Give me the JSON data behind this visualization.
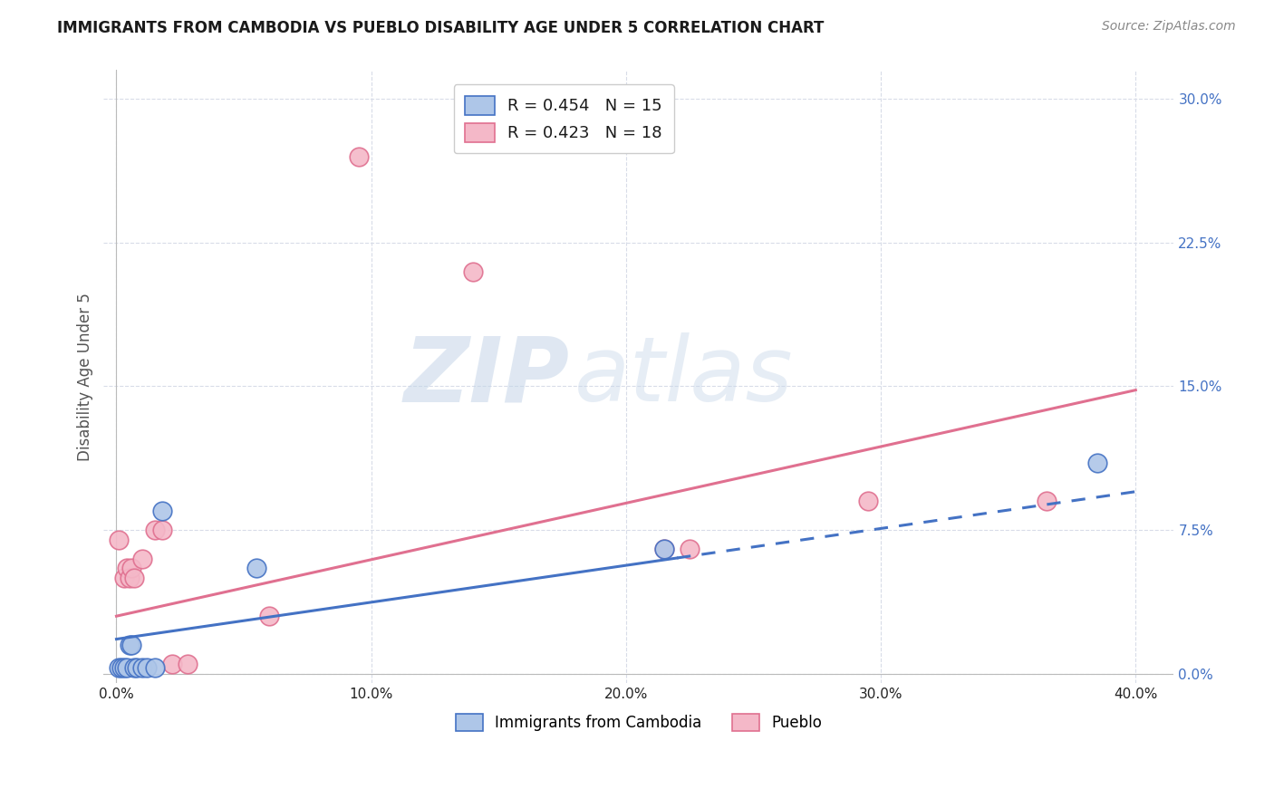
{
  "title": "IMMIGRANTS FROM CAMBODIA VS PUEBLO DISABILITY AGE UNDER 5 CORRELATION CHART",
  "source": "Source: ZipAtlas.com",
  "ylabel": "Disability Age Under 5",
  "xlabel_ticks": [
    "0.0%",
    "10.0%",
    "20.0%",
    "30.0%",
    "40.0%"
  ],
  "ylabel_ticks": [
    "0.0%",
    "7.5%",
    "15.0%",
    "22.5%",
    "30.0%"
  ],
  "xlim": [
    -0.005,
    0.415
  ],
  "ylim": [
    -0.005,
    0.315
  ],
  "watermark_zip": "ZIP",
  "watermark_atlas": "atlas",
  "legend_entries": [
    {
      "label": "R = 0.454   N = 15",
      "color": "#aec6e8",
      "edge": "#4472c4"
    },
    {
      "label": "R = 0.423   N = 18",
      "color": "#f4b8c8",
      "edge": "#e07090"
    }
  ],
  "legend_bottom": [
    "Immigrants from Cambodia",
    "Pueblo"
  ],
  "cambodia_points": [
    [
      0.001,
      0.003
    ],
    [
      0.002,
      0.003
    ],
    [
      0.003,
      0.003
    ],
    [
      0.004,
      0.003
    ],
    [
      0.005,
      0.015
    ],
    [
      0.006,
      0.015
    ],
    [
      0.007,
      0.003
    ],
    [
      0.008,
      0.003
    ],
    [
      0.01,
      0.003
    ],
    [
      0.012,
      0.003
    ],
    [
      0.015,
      0.003
    ],
    [
      0.018,
      0.085
    ],
    [
      0.055,
      0.055
    ],
    [
      0.215,
      0.065
    ],
    [
      0.385,
      0.11
    ]
  ],
  "pueblo_points": [
    [
      0.001,
      0.07
    ],
    [
      0.003,
      0.05
    ],
    [
      0.004,
      0.055
    ],
    [
      0.005,
      0.05
    ],
    [
      0.006,
      0.055
    ],
    [
      0.007,
      0.05
    ],
    [
      0.01,
      0.06
    ],
    [
      0.015,
      0.075
    ],
    [
      0.018,
      0.075
    ],
    [
      0.022,
      0.005
    ],
    [
      0.028,
      0.005
    ],
    [
      0.06,
      0.03
    ],
    [
      0.095,
      0.27
    ],
    [
      0.14,
      0.21
    ],
    [
      0.215,
      0.065
    ],
    [
      0.225,
      0.065
    ],
    [
      0.295,
      0.09
    ],
    [
      0.365,
      0.09
    ]
  ],
  "cambodia_color": "#aec6e8",
  "pueblo_color": "#f4b8c8",
  "cambodia_line_color": "#4472c4",
  "pueblo_line_color": "#e07090",
  "grid_color": "#d8dce8",
  "bg_color": "#ffffff",
  "title_color": "#1a1a1a",
  "source_color": "#888888",
  "axis_label_color": "#555555",
  "tick_color_x": "#222222",
  "tick_color_y": "#4472c4",
  "x_ticks": [
    0.0,
    0.1,
    0.2,
    0.3,
    0.4
  ],
  "y_ticks": [
    0.0,
    0.075,
    0.15,
    0.225,
    0.3
  ]
}
